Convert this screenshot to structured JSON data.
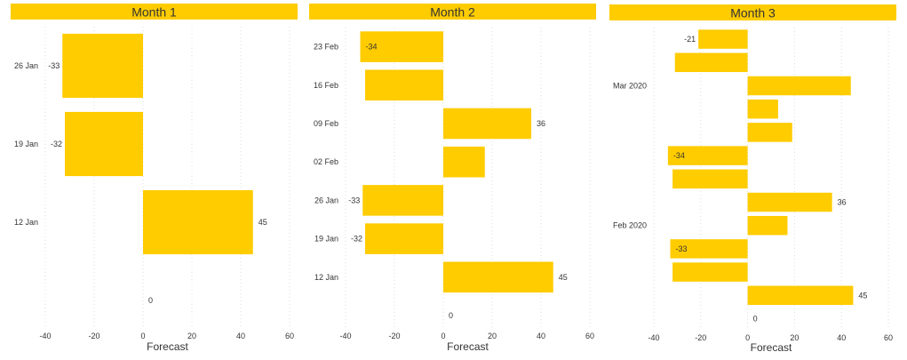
{
  "colors": {
    "bar": "#FFCC00",
    "header": "#FFCC00",
    "text": "#333333",
    "grid": "#dddddd",
    "header_text": "#252423"
  },
  "chart_data": [
    {
      "type": "bar",
      "orientation": "horizontal",
      "title": "Month 1",
      "xlabel": "Forecast",
      "ylabel": "",
      "xlim": [
        -40,
        60
      ],
      "x_ticks": [
        "-40",
        "-20",
        "0",
        "20",
        "40",
        "60"
      ],
      "grid": true,
      "categories": [
        "26 Jan",
        "19 Jan",
        "12 Jan"
      ],
      "values": [
        -33,
        -32,
        45
      ],
      "data_labels": [
        "-33",
        "-32",
        "45"
      ],
      "blank_row_label": "0"
    },
    {
      "type": "bar",
      "orientation": "horizontal",
      "title": "Month 2",
      "xlabel": "Forecast",
      "ylabel": "",
      "xlim": [
        -40,
        60
      ],
      "x_ticks": [
        "-40",
        "-20",
        "0",
        "20",
        "40",
        "60"
      ],
      "grid": true,
      "categories": [
        "23 Feb",
        "16 Feb",
        "09 Feb",
        "02 Feb",
        "26 Jan",
        "19 Jan",
        "12 Jan"
      ],
      "values": [
        -34,
        -32,
        36,
        17,
        -33,
        -32,
        45
      ],
      "data_labels": [
        "-34",
        "",
        "36",
        "",
        "-33",
        "-32",
        "45"
      ],
      "blank_row_label": "0"
    },
    {
      "type": "bar",
      "orientation": "horizontal",
      "title": "Month 3",
      "xlabel": "Forecast",
      "ylabel": "",
      "xlim": [
        -40,
        60
      ],
      "x_ticks": [
        "-40",
        "-20",
        "0",
        "20",
        "40",
        "60"
      ],
      "grid": true,
      "groups": [
        {
          "label": "Mar 2020",
          "first_row": 0,
          "last_row": 4
        },
        {
          "label": "Feb 2020",
          "first_row": 5,
          "last_row": 11
        }
      ],
      "values": [
        -21,
        -31,
        44,
        13,
        19,
        -34,
        -32,
        36,
        17,
        -33,
        -32,
        45
      ],
      "data_labels": [
        "-21",
        "",
        "",
        "",
        "",
        "-34",
        "",
        "36",
        "",
        "-33",
        "",
        "45"
      ],
      "blank_row_label": "0"
    }
  ]
}
